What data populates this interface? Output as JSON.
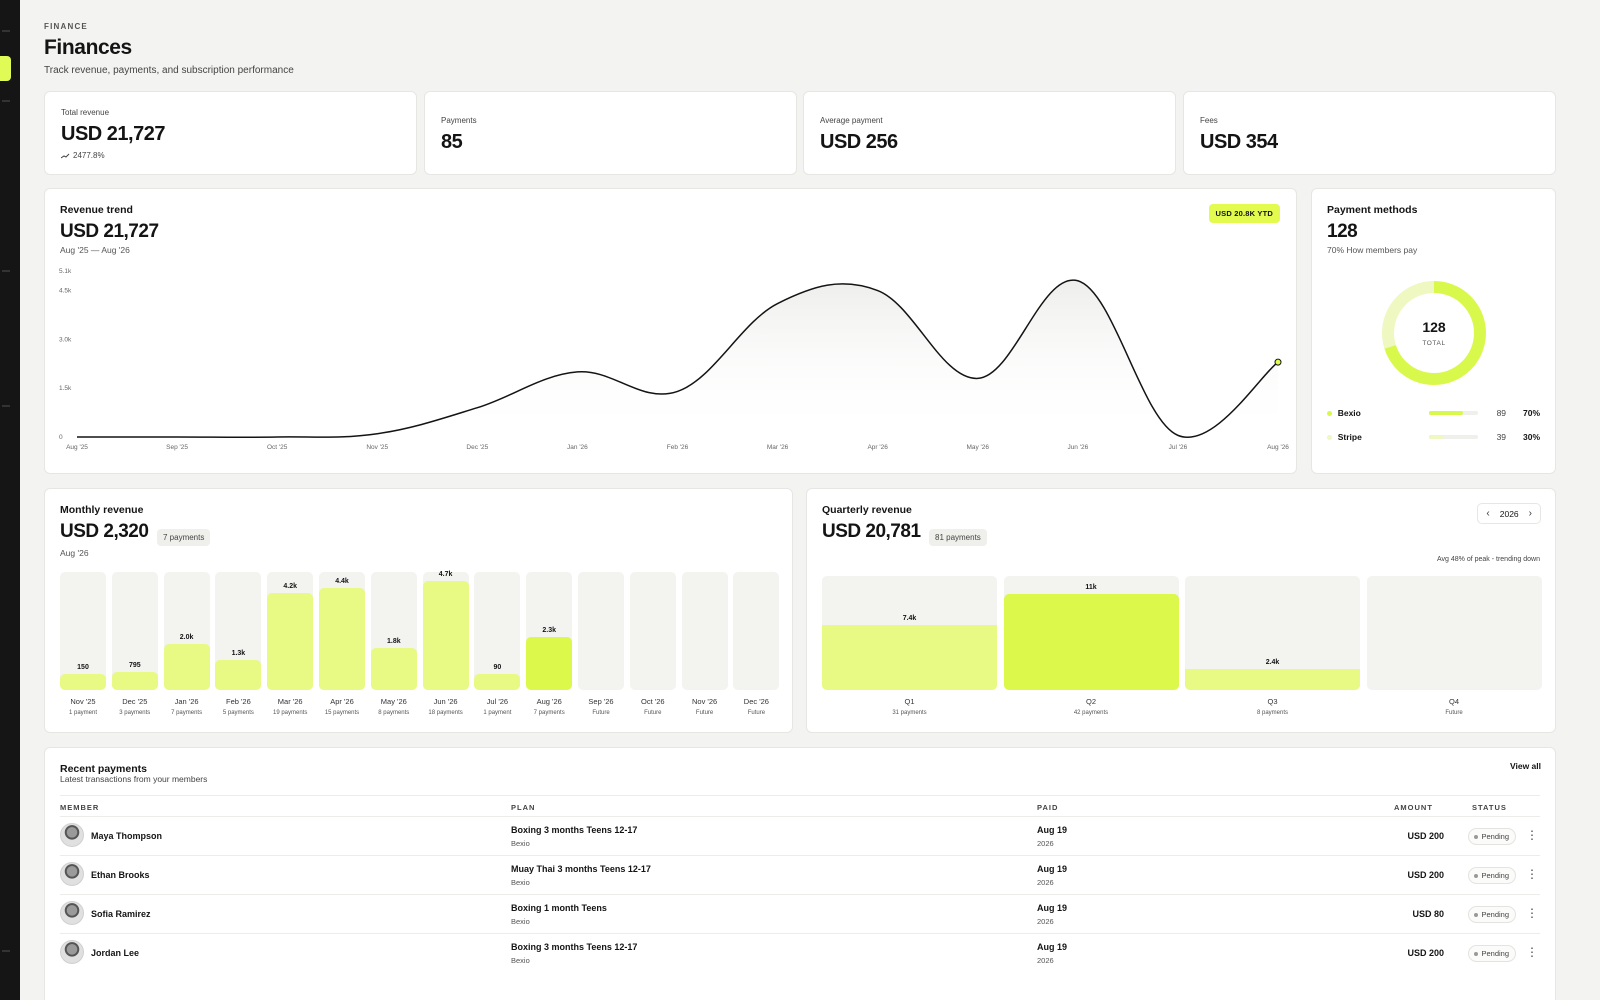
{
  "header": {
    "eyebrow": "FINANCE",
    "title": "Finances",
    "subtitle": "Track revenue, payments, and subscription performance"
  },
  "kpis": [
    {
      "label": "Total revenue",
      "value": "USD 21,727",
      "trend": "2477.8%"
    },
    {
      "label": "Payments",
      "value": "85"
    },
    {
      "label": "Average payment",
      "value": "USD 256"
    },
    {
      "label": "Fees",
      "value": "USD 354"
    }
  ],
  "revenue_trend": {
    "title": "Revenue trend",
    "value": "USD 21,727",
    "range": "Aug '25 — Aug '26",
    "badge": "USD 20.8K YTD"
  },
  "payment_methods": {
    "title": "Payment methods",
    "value": "128",
    "subtitle": "70% How members pay",
    "donut_total": "128",
    "donut_label": "TOTAL",
    "items": [
      {
        "name": "Bexio",
        "count": "89",
        "pct": "70%",
        "share": 0.7,
        "color": "#d9f84c"
      },
      {
        "name": "Stripe",
        "count": "39",
        "pct": "30%",
        "share": 0.3,
        "color": "#eef8c0"
      }
    ]
  },
  "monthly": {
    "title": "Monthly revenue",
    "value": "USD 2,320",
    "chip": "7 payments",
    "period": "Aug '26"
  },
  "quarterly": {
    "title": "Quarterly revenue",
    "value": "USD 20,781",
    "chip": "81 payments",
    "year": "2026",
    "note": "Avg 48% of peak - trending down"
  },
  "recent": {
    "title": "Recent payments",
    "subtitle": "Latest transactions from your members",
    "view_all": "View all",
    "columns": {
      "member": "MEMBER",
      "plan": "PLAN",
      "paid": "PAID",
      "amount": "AMOUNT",
      "status": "STATUS"
    },
    "rows": [
      {
        "name": "Maya Thompson",
        "plan": "Boxing 3 months Teens 12-17",
        "provider": "Bexio",
        "date": "Aug 19",
        "year": "2026",
        "amount": "USD 200",
        "status": "Pending"
      },
      {
        "name": "Ethan Brooks",
        "plan": "Muay Thai 3 months Teens 12-17",
        "provider": "Bexio",
        "date": "Aug 19",
        "year": "2026",
        "amount": "USD 200",
        "status": "Pending"
      },
      {
        "name": "Sofia Ramirez",
        "plan": "Boxing 1 month Teens",
        "provider": "Bexio",
        "date": "Aug 19",
        "year": "2026",
        "amount": "USD 80",
        "status": "Pending"
      },
      {
        "name": "Jordan Lee",
        "plan": "Boxing 3 months Teens 12-17",
        "provider": "Bexio",
        "date": "Aug 19",
        "year": "2026",
        "amount": "USD 200",
        "status": "Pending"
      }
    ]
  },
  "colors": {
    "accent": "#dcf84a",
    "accent_soft": "#e8f984",
    "dark": "#151515"
  },
  "icons": {
    "trend": "trend-up-icon",
    "prev": "chevron-left-icon",
    "next": "chevron-right-icon",
    "more": "kebab-icon"
  },
  "chart_data": [
    {
      "type": "line",
      "x": [
        "Aug '25",
        "Sep '25",
        "Oct '25",
        "Nov '25",
        "Dec '25",
        "Jan '26",
        "Feb '26",
        "Mar '26",
        "Apr '26",
        "May '26",
        "Jun '26",
        "Jul '26",
        "Aug '26"
      ],
      "y": [
        0,
        0,
        0,
        100,
        900,
        2000,
        1400,
        4100,
        4500,
        1800,
        4800,
        50,
        2300
      ],
      "yticks": [
        "0",
        "1.5k",
        "3.0k",
        "4.5k",
        "5.1k"
      ],
      "ylim": [
        0,
        5100
      ]
    },
    {
      "type": "bar",
      "categories": [
        "Nov '25",
        "Dec '25",
        "Jan '26",
        "Feb '26",
        "Mar '26",
        "Apr '26",
        "May '26",
        "Jun '26",
        "Jul '26",
        "Aug '26",
        "Sep '26",
        "Oct '26",
        "Nov '26",
        "Dec '26"
      ],
      "values": [
        150,
        795,
        2000,
        1300,
        4200,
        4400,
        1800,
        4700,
        90,
        2300,
        null,
        null,
        null,
        null
      ],
      "value_labels": [
        "150",
        "795",
        "2.0k",
        "1.3k",
        "4.2k",
        "4.4k",
        "1.8k",
        "4.7k",
        "90",
        "2.3k",
        "",
        "",
        "",
        ""
      ],
      "sublabels": [
        "1 payment",
        "3 payments",
        "7 payments",
        "5 payments",
        "19 payments",
        "15 payments",
        "8 payments",
        "18 payments",
        "1 payment",
        "7 payments",
        "Future",
        "Future",
        "Future",
        "Future"
      ],
      "ylim": [
        0,
        5100
      ]
    },
    {
      "type": "bar",
      "categories": [
        "Q1",
        "Q2",
        "Q3",
        "Q4"
      ],
      "values": [
        7400,
        11000,
        2400,
        null
      ],
      "value_labels": [
        "7.4k",
        "11k",
        "2.4k",
        ""
      ],
      "sublabels": [
        "31 payments",
        "42 payments",
        "8 payments",
        "Future"
      ],
      "ylim": [
        0,
        13000
      ]
    }
  ]
}
